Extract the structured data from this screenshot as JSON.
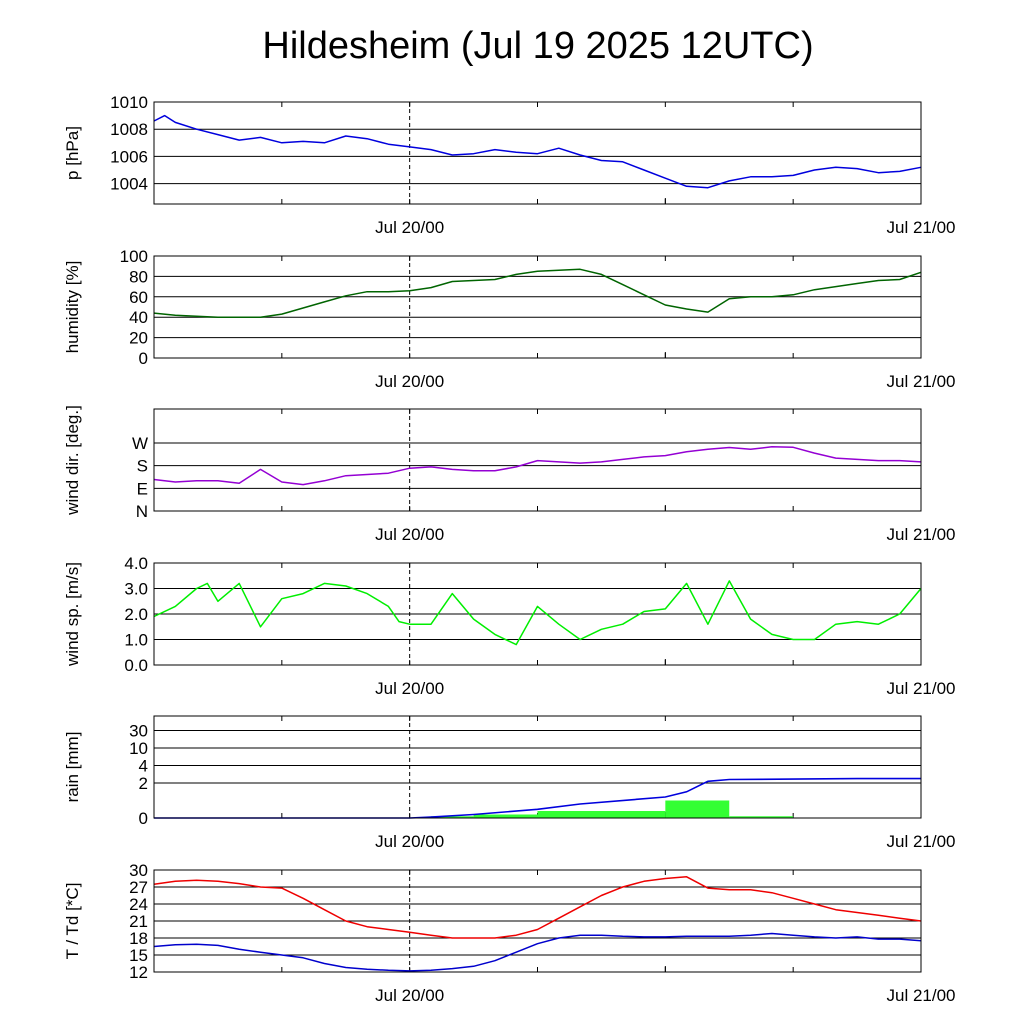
{
  "title": "Hildesheim (Jul 19 2025 12UTC)",
  "x_tick_labels": [
    "Jul 20/00",
    "Jul 21/00"
  ],
  "colors": {
    "pressure": "#0000dd",
    "humidity": "#006400",
    "wind_dir": "#9400d3",
    "wind_speed": "#00ee00",
    "rain_bar": "#33ff33",
    "rain_cum": "#0000dd",
    "temperature": "#ee0000",
    "dewpoint": "#0000cc"
  },
  "chart_data": [
    {
      "type": "line",
      "ylabel": "p [hPa]",
      "ylim": [
        1002.5,
        1010
      ],
      "yticks": [
        1004,
        1006,
        1008,
        1010
      ],
      "ytick_labels": [
        "1004",
        "1006",
        "1008",
        "1010"
      ],
      "x": [
        0,
        0.5,
        1,
        2,
        3,
        4,
        5,
        6,
        7,
        8,
        9,
        10,
        11,
        12,
        13,
        14,
        15,
        16,
        17,
        18,
        19,
        20,
        21,
        22,
        23,
        24,
        25,
        26,
        27,
        28,
        29,
        30,
        31,
        32,
        33,
        34,
        35,
        36
      ],
      "series": [
        {
          "key": "pressure",
          "values": [
            1008.6,
            1009.0,
            1008.5,
            1008.0,
            1007.6,
            1007.2,
            1007.4,
            1007.0,
            1007.1,
            1007.0,
            1007.5,
            1007.3,
            1006.9,
            1006.7,
            1006.5,
            1006.1,
            1006.2,
            1006.5,
            1006.3,
            1006.2,
            1006.6,
            1006.1,
            1005.7,
            1005.6,
            1005.0,
            1004.4,
            1003.8,
            1003.7,
            1004.2,
            1004.5,
            1004.5,
            1004.6,
            1005.0,
            1005.2,
            1005.1,
            1004.8,
            1004.9,
            1005.2
          ]
        }
      ]
    },
    {
      "type": "line",
      "ylabel": "humidity [%]",
      "ylim": [
        0,
        100
      ],
      "yticks": [
        0,
        20,
        40,
        60,
        80,
        100
      ],
      "ytick_labels": [
        "0",
        "20",
        "40",
        "60",
        "80",
        "100"
      ],
      "x": [
        0,
        1,
        2,
        3,
        4,
        5,
        6,
        7,
        8,
        9,
        10,
        11,
        12,
        13,
        14,
        15,
        16,
        17,
        18,
        19,
        20,
        21,
        22,
        23,
        24,
        25,
        26,
        27,
        28,
        29,
        30,
        31,
        32,
        33,
        34,
        35,
        36
      ],
      "series": [
        {
          "key": "humidity",
          "values": [
            44,
            42,
            41,
            40,
            40,
            40,
            43,
            49,
            55,
            61,
            65,
            65,
            66,
            69,
            75,
            76,
            77,
            82,
            85,
            86,
            87,
            82,
            72,
            62,
            52,
            48,
            45,
            58,
            60,
            60,
            62,
            67,
            70,
            73,
            76,
            77,
            84
          ]
        }
      ]
    },
    {
      "type": "line",
      "ylabel": "wind dir. [deg.]",
      "ylim": [
        0,
        405
      ],
      "yticks": [
        0,
        90,
        180,
        270
      ],
      "ytick_labels": [
        "N",
        "E",
        "S",
        "W"
      ],
      "x": [
        0,
        1,
        2,
        3,
        4,
        5,
        6,
        7,
        8,
        9,
        10,
        11,
        12,
        13,
        14,
        15,
        16,
        17,
        18,
        19,
        20,
        21,
        22,
        23,
        24,
        25,
        26,
        27,
        28,
        29,
        30,
        31,
        32,
        33,
        34,
        35,
        36
      ],
      "series": [
        {
          "key": "wind_dir",
          "values": [
            125,
            115,
            120,
            120,
            110,
            165,
            115,
            105,
            120,
            140,
            145,
            150,
            170,
            175,
            165,
            160,
            160,
            175,
            200,
            195,
            190,
            195,
            205,
            215,
            220,
            235,
            245,
            252,
            245,
            255,
            253,
            230,
            210,
            205,
            200,
            200,
            195
          ]
        }
      ]
    },
    {
      "type": "line",
      "ylabel": "wind sp. [m/s]",
      "ylim": [
        0,
        4
      ],
      "yticks": [
        0,
        1,
        2,
        3,
        4
      ],
      "ytick_labels": [
        "0.0",
        "1.0",
        "2.0",
        "3.0",
        "4.0"
      ],
      "x": [
        0,
        1,
        2,
        2.5,
        3,
        4,
        5,
        6,
        7,
        8,
        9,
        10,
        11,
        11.5,
        12,
        13,
        14,
        15,
        16,
        17,
        18,
        19,
        20,
        21,
        22,
        23,
        24,
        25,
        26,
        27,
        28,
        29,
        30,
        31,
        32,
        33,
        34,
        35,
        36
      ],
      "series": [
        {
          "key": "wind_speed",
          "values": [
            1.9,
            2.3,
            3.0,
            3.2,
            2.5,
            3.2,
            1.5,
            2.6,
            2.8,
            3.2,
            3.1,
            2.8,
            2.3,
            1.7,
            1.6,
            1.6,
            2.8,
            1.8,
            1.2,
            0.8,
            2.3,
            1.6,
            1.0,
            1.4,
            1.6,
            2.1,
            2.2,
            3.2,
            1.6,
            3.3,
            1.8,
            1.2,
            1.0,
            1.0,
            1.6,
            1.7,
            1.6,
            2.0,
            3.0
          ]
        }
      ]
    },
    {
      "type": "bar",
      "ylabel": "rain [mm]",
      "ylim": [
        0,
        30
      ],
      "yticks": [
        0,
        2,
        4,
        10,
        30
      ],
      "ytick_labels": [
        "0",
        "2",
        "4",
        "10",
        "30"
      ],
      "bars": [
        {
          "x0": 13,
          "x1": 15,
          "value": 0.1
        },
        {
          "x0": 15,
          "x1": 18,
          "value": 0.2
        },
        {
          "x0": 18,
          "x1": 24,
          "value": 0.4
        },
        {
          "x0": 24,
          "x1": 27,
          "value": 1.0
        },
        {
          "x0": 27,
          "x1": 30,
          "value": 0.1
        }
      ],
      "cumulative": {
        "key": "rain_cum",
        "x": [
          0,
          12,
          13,
          15,
          18,
          20,
          24,
          25,
          26,
          27,
          30,
          33,
          36
        ],
        "values": [
          0,
          0,
          0.05,
          0.2,
          0.5,
          0.8,
          1.2,
          1.5,
          2.2,
          2.4,
          2.45,
          2.5,
          2.5
        ]
      }
    },
    {
      "type": "line",
      "ylabel": "T / Td [*C]",
      "ylim": [
        12,
        30
      ],
      "yticks": [
        12,
        15,
        18,
        21,
        24,
        27,
        30
      ],
      "ytick_labels": [
        "12",
        "15",
        "18",
        "21",
        "24",
        "27",
        "30"
      ],
      "x": [
        0,
        1,
        2,
        3,
        4,
        5,
        6,
        7,
        8,
        9,
        10,
        11,
        12,
        13,
        14,
        15,
        16,
        17,
        18,
        19,
        20,
        21,
        22,
        23,
        24,
        25,
        26,
        27,
        28,
        29,
        30,
        31,
        32,
        33,
        34,
        35,
        36
      ],
      "series": [
        {
          "key": "temperature",
          "values": [
            27.5,
            28.0,
            28.2,
            28.0,
            27.6,
            27.0,
            26.8,
            25.0,
            23.0,
            21.0,
            20.0,
            19.5,
            19.0,
            18.5,
            18.0,
            18.0,
            18.0,
            18.5,
            19.5,
            21.5,
            23.5,
            25.5,
            27.0,
            28.0,
            28.5,
            28.8,
            26.8,
            26.5,
            26.5,
            26.0,
            25.0,
            24.0,
            23.0,
            22.5,
            22.0,
            21.5,
            21.0
          ]
        },
        {
          "key": "dewpoint",
          "values": [
            16.5,
            16.8,
            16.9,
            16.7,
            16.0,
            15.5,
            15.0,
            14.5,
            13.5,
            12.8,
            12.5,
            12.3,
            12.2,
            12.3,
            12.6,
            13.0,
            14.0,
            15.5,
            17.0,
            18.0,
            18.5,
            18.5,
            18.3,
            18.2,
            18.2,
            18.3,
            18.3,
            18.3,
            18.5,
            18.8,
            18.5,
            18.2,
            18.0,
            18.2,
            17.8,
            17.8,
            17.5
          ]
        }
      ]
    }
  ]
}
